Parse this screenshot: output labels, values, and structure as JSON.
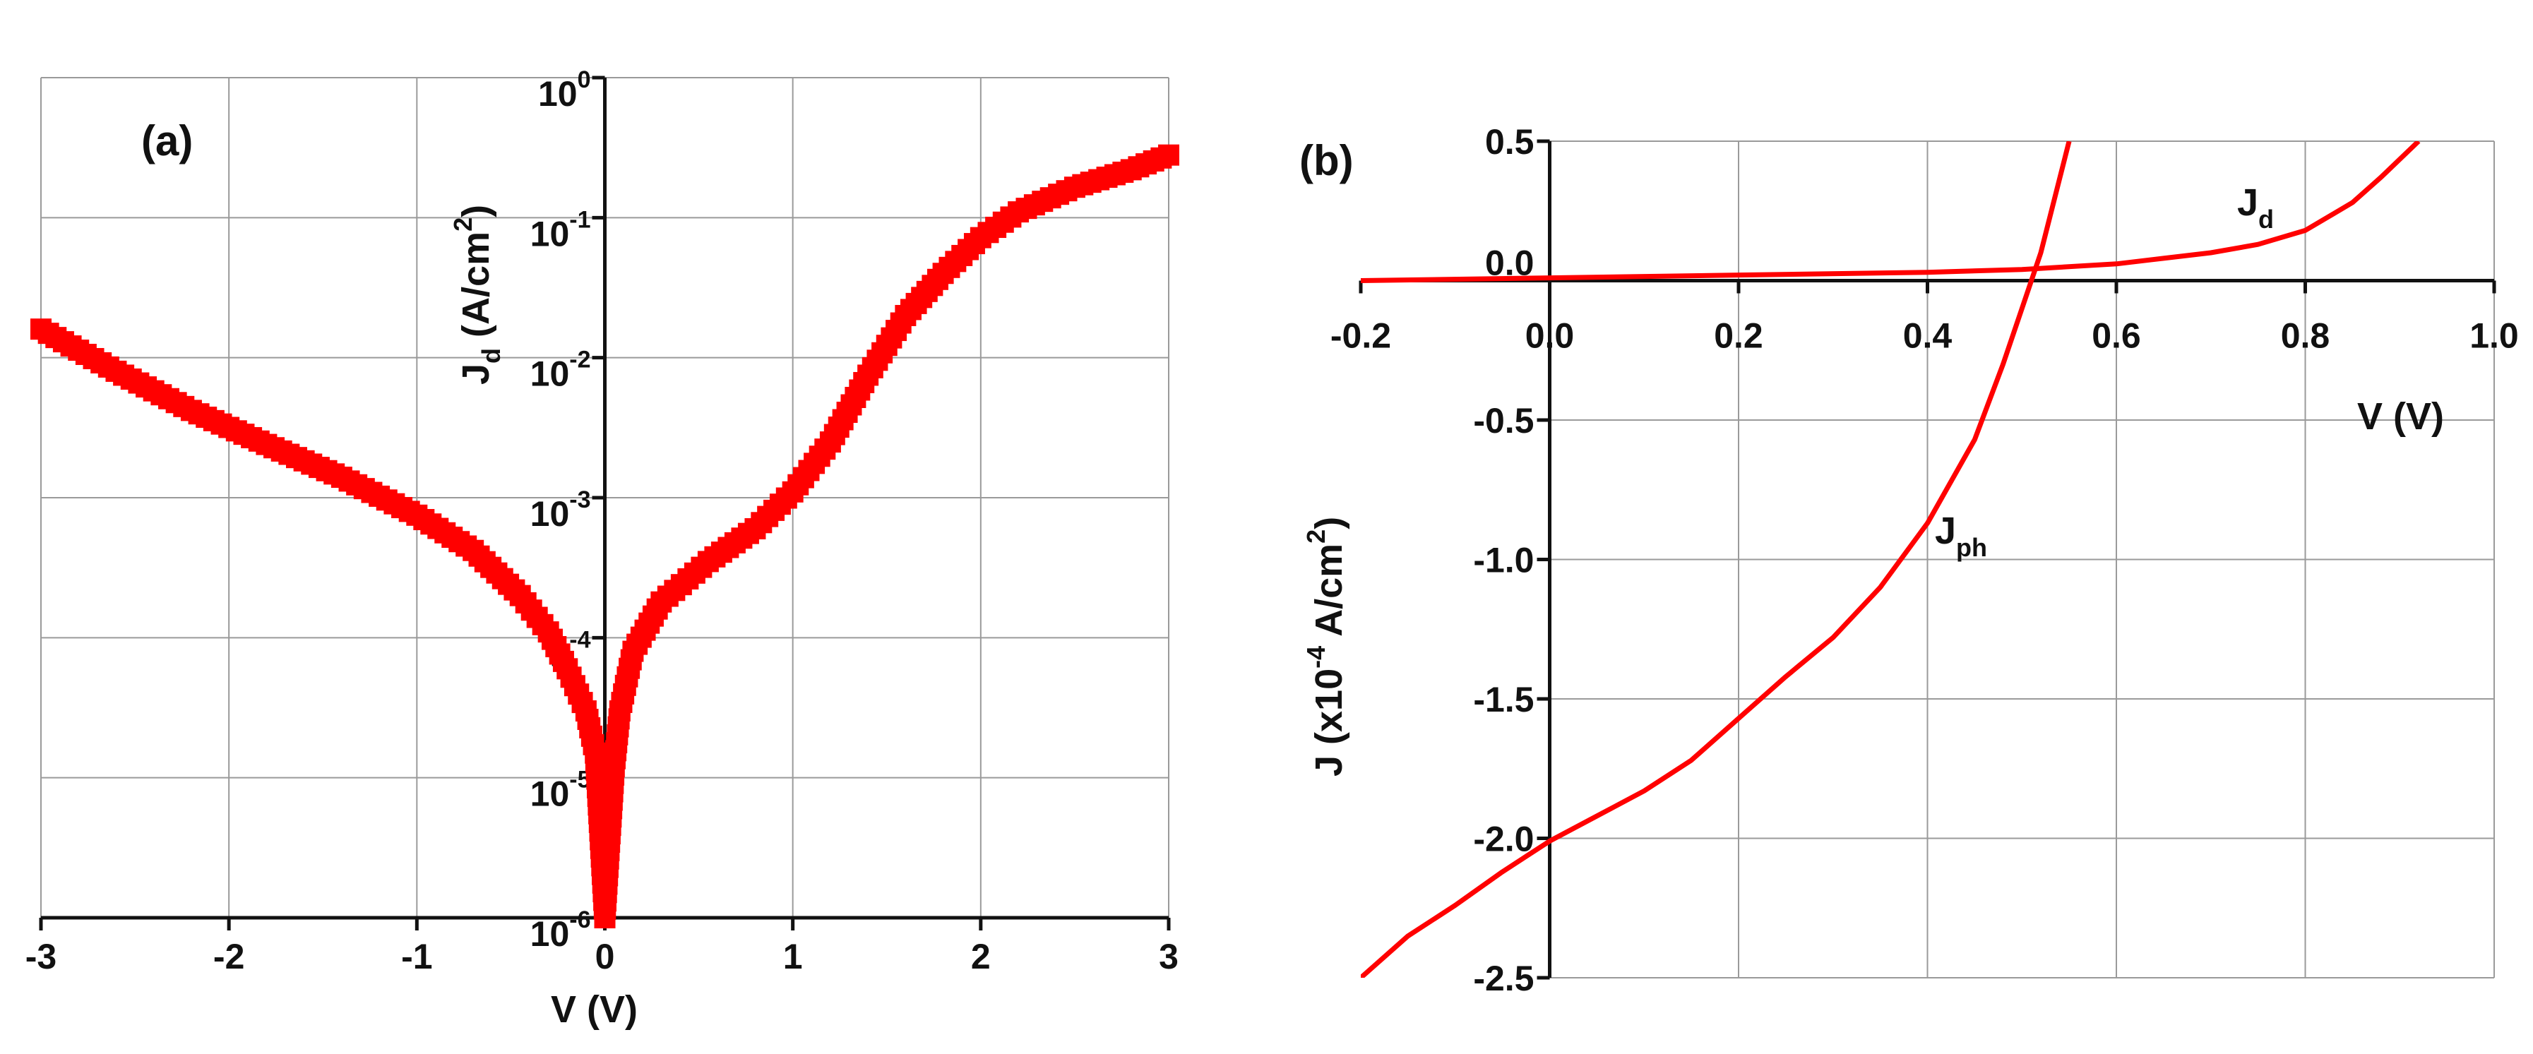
{
  "chart_data": [
    {
      "type": "scatter",
      "panel_label": "(a)",
      "xlabel": "V  (V)",
      "ylabel_main": "J",
      "ylabel_sub": "d",
      "ylabel_unit": "  (A/cm",
      "ylabel_sup": "2",
      "ylabel_close": ")",
      "xlim": [
        -3,
        3
      ],
      "y_scale": "log",
      "ylim": [
        1e-06,
        1
      ],
      "x_ticks": [
        "-3",
        "-2",
        "-1",
        "0",
        "1",
        "2",
        "3"
      ],
      "y_ticks": [
        {
          "base": "10",
          "exp": "0",
          "value": 1
        },
        {
          "base": "10",
          "exp": "-1",
          "value": 0.1
        },
        {
          "base": "10",
          "exp": "-2",
          "value": 0.01
        },
        {
          "base": "10",
          "exp": "-3",
          "value": 0.001
        },
        {
          "base": "1",
          "exp": "-4",
          "value": 0.0001
        },
        {
          "base": "10",
          "exp": "-5",
          "value": 1e-05
        },
        {
          "base": "10",
          "exp": "-6",
          "value": 1e-06
        }
      ],
      "grid": true,
      "marker_color": "#ff0000",
      "series": [
        {
          "points": [
            [
              -3.0,
              0.016
            ],
            [
              -2.6,
              0.008
            ],
            [
              -2.2,
              0.0042
            ],
            [
              -1.8,
              0.0024
            ],
            [
              -1.4,
              0.0014
            ],
            [
              -1.0,
              0.00075
            ],
            [
              -0.7,
              0.00042
            ],
            [
              -0.45,
              0.0002
            ],
            [
              -0.3,
              0.00011
            ],
            [
              -0.2,
              6e-05
            ],
            [
              -0.1,
              3e-05
            ],
            [
              -0.05,
              1.5e-05
            ],
            [
              0.0,
              1e-06
            ],
            [
              0.05,
              1.2e-05
            ],
            [
              0.08,
              3e-05
            ],
            [
              0.15,
              8e-05
            ],
            [
              0.3,
              0.00018
            ],
            [
              0.55,
              0.00035
            ],
            [
              0.8,
              0.0006
            ],
            [
              1.0,
              0.0011
            ],
            [
              1.2,
              0.0025
            ],
            [
              1.4,
              0.0075
            ],
            [
              1.6,
              0.02
            ],
            [
              1.8,
              0.04
            ],
            [
              2.0,
              0.072
            ],
            [
              2.2,
              0.11
            ],
            [
              2.5,
              0.165
            ],
            [
              2.8,
              0.22
            ],
            [
              3.0,
              0.28
            ]
          ]
        }
      ]
    },
    {
      "type": "line",
      "panel_label": "(b)",
      "xlabel": "V (V)",
      "ylabel_main": "J  (x10",
      "ylabel_sup": "-4",
      "ylabel_unit": " A/cm",
      "ylabel_sup2": "2",
      "ylabel_close": ")",
      "xlim": [
        -0.2,
        1.0
      ],
      "ylim": [
        -2.5,
        0.5
      ],
      "x_ticks": [
        "-0.2",
        "0.0",
        "0.2",
        "0.4",
        "0.6",
        "0.8",
        "1.0"
      ],
      "y_ticks": [
        "0.5",
        "0.0",
        "-0.5",
        "-1.0",
        "-1.5",
        "-2.0",
        "-2.5"
      ],
      "grid": true,
      "line_color": "#ff0000",
      "series": [
        {
          "label_main": "J",
          "label_sub": "d",
          "points": [
            [
              -0.2,
              0.0
            ],
            [
              0.0,
              0.01
            ],
            [
              0.2,
              0.02
            ],
            [
              0.4,
              0.03
            ],
            [
              0.5,
              0.04
            ],
            [
              0.6,
              0.06
            ],
            [
              0.65,
              0.08
            ],
            [
              0.7,
              0.1
            ],
            [
              0.75,
              0.13
            ],
            [
              0.8,
              0.18
            ],
            [
              0.85,
              0.28
            ],
            [
              0.88,
              0.37
            ],
            [
              0.92,
              0.5
            ]
          ]
        },
        {
          "label_main": "J",
          "label_sub": "ph",
          "points": [
            [
              -0.2,
              -2.5
            ],
            [
              -0.15,
              -2.35
            ],
            [
              -0.1,
              -2.24
            ],
            [
              -0.05,
              -2.12
            ],
            [
              0.0,
              -2.01
            ],
            [
              0.05,
              -1.92
            ],
            [
              0.1,
              -1.83
            ],
            [
              0.15,
              -1.72
            ],
            [
              0.2,
              -1.57
            ],
            [
              0.25,
              -1.42
            ],
            [
              0.3,
              -1.28
            ],
            [
              0.35,
              -1.1
            ],
            [
              0.4,
              -0.87
            ],
            [
              0.45,
              -0.57
            ],
            [
              0.48,
              -0.3
            ],
            [
              0.5,
              -0.1
            ],
            [
              0.52,
              0.1
            ],
            [
              0.55,
              0.5
            ]
          ]
        }
      ]
    }
  ]
}
